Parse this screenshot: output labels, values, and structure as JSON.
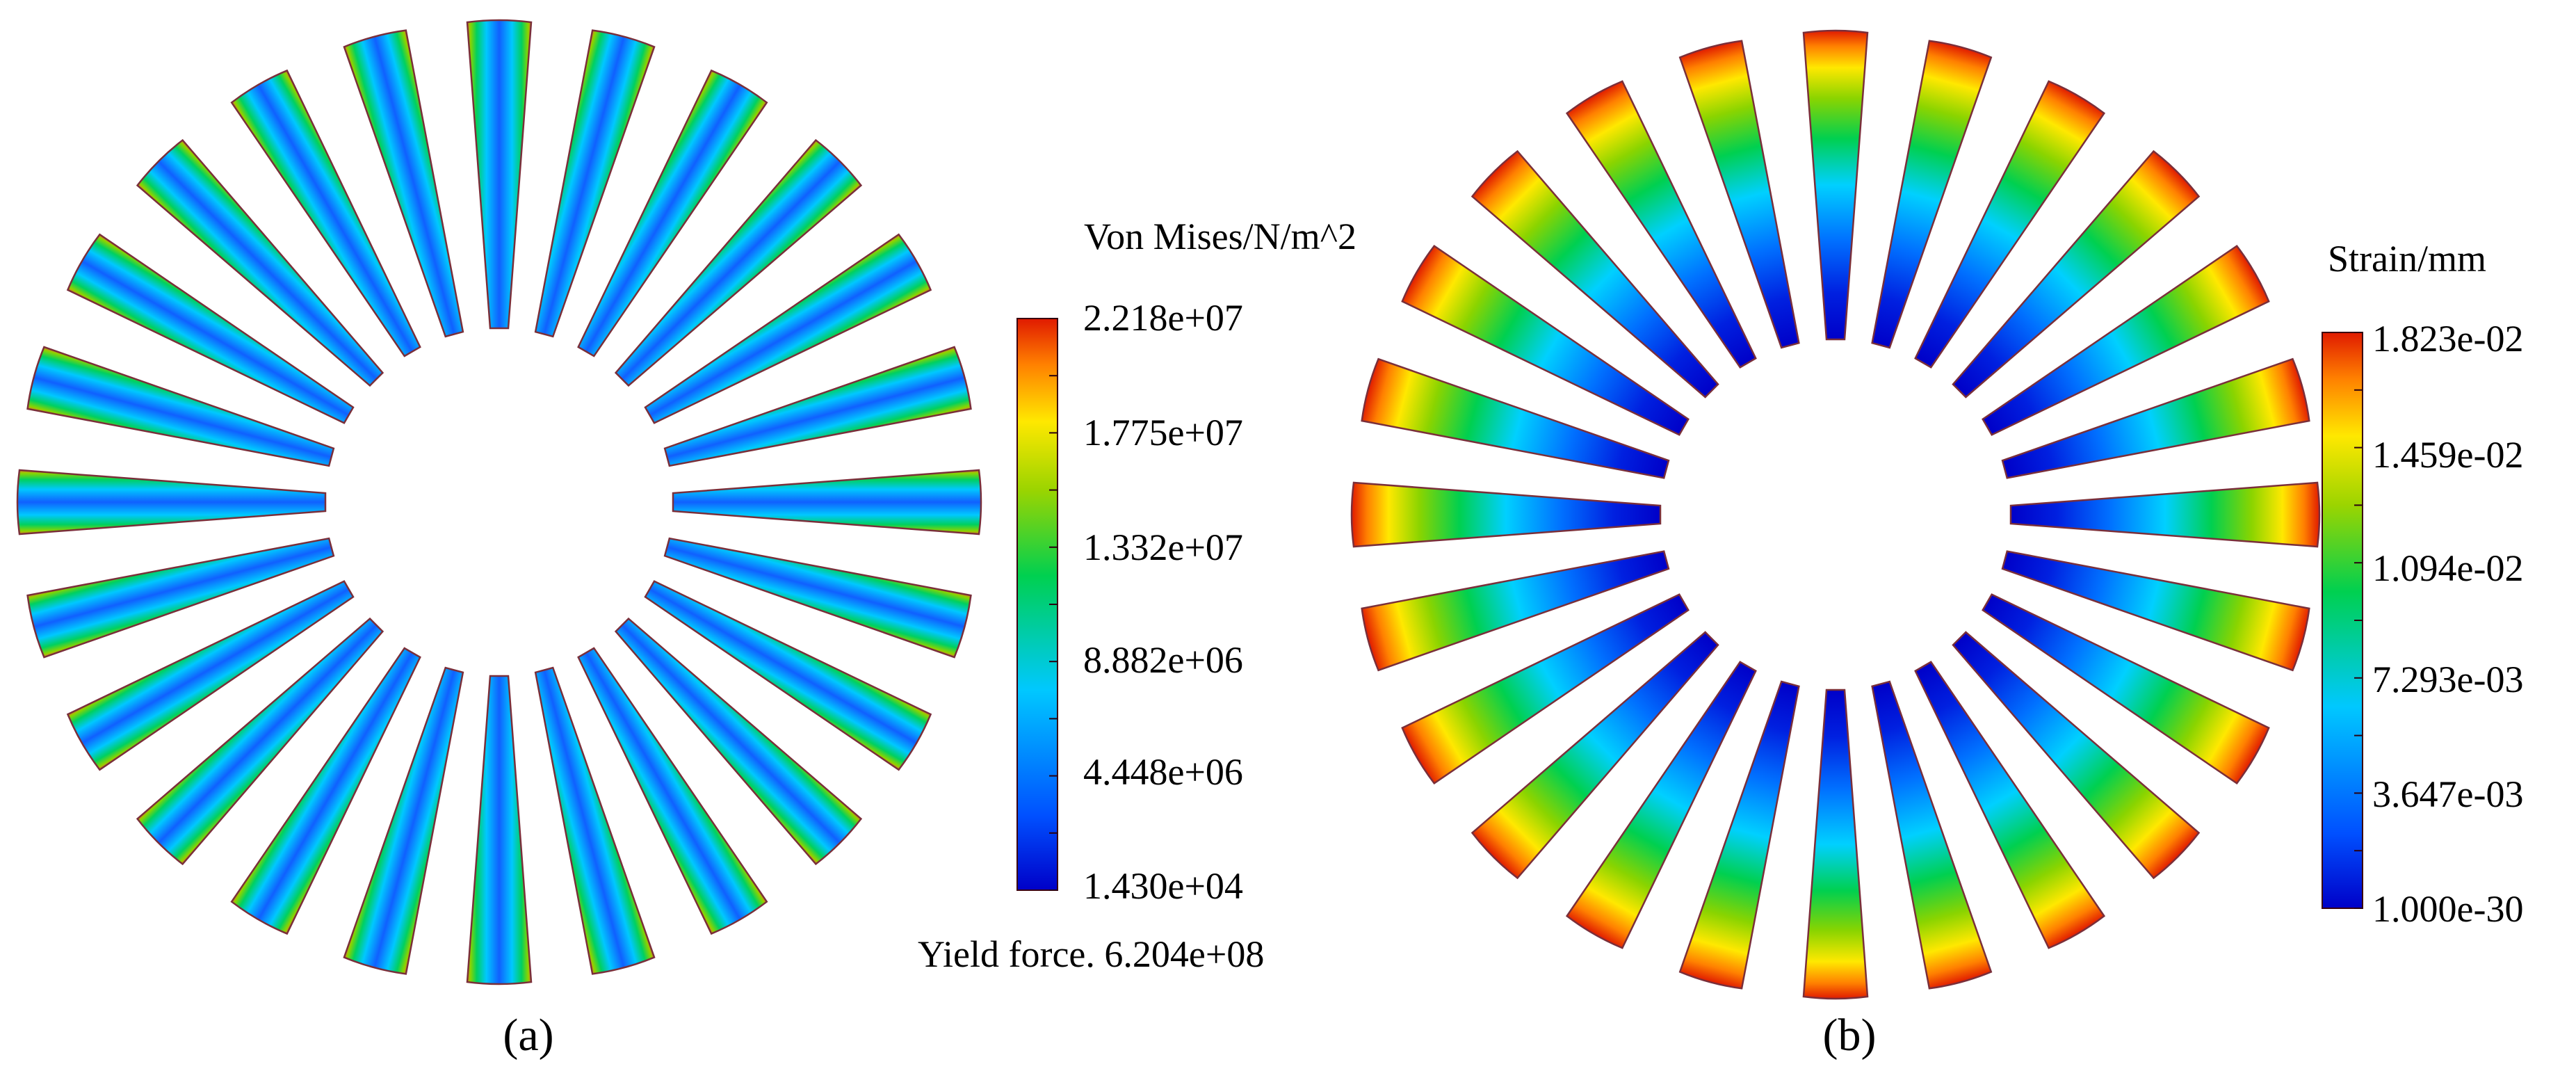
{
  "panel_a": {
    "caption": "(a)",
    "legend": {
      "title": "Von Mises/N/m^2",
      "ticks": [
        "2.218e+07",
        "1.775e+07",
        "1.332e+07",
        "8.882e+06",
        "4.448e+06",
        "1.430e+04"
      ]
    },
    "note": "Yield force. 6.204e+08",
    "blade_count": 24
  },
  "panel_b": {
    "caption": "(b)",
    "legend": {
      "title": "Strain/mm",
      "ticks": [
        "1.823e-02",
        "1.459e-02",
        "1.094e-02",
        "7.293e-03",
        "3.647e-03",
        "1.000e-30"
      ]
    },
    "blade_count": 24
  },
  "colors": {
    "jet": [
      "#0000c8",
      "#0050ff",
      "#00c8ff",
      "#00e070",
      "#7ad400",
      "#ffff00",
      "#ff8000",
      "#e02000"
    ],
    "outline": "#7a2f3a"
  }
}
